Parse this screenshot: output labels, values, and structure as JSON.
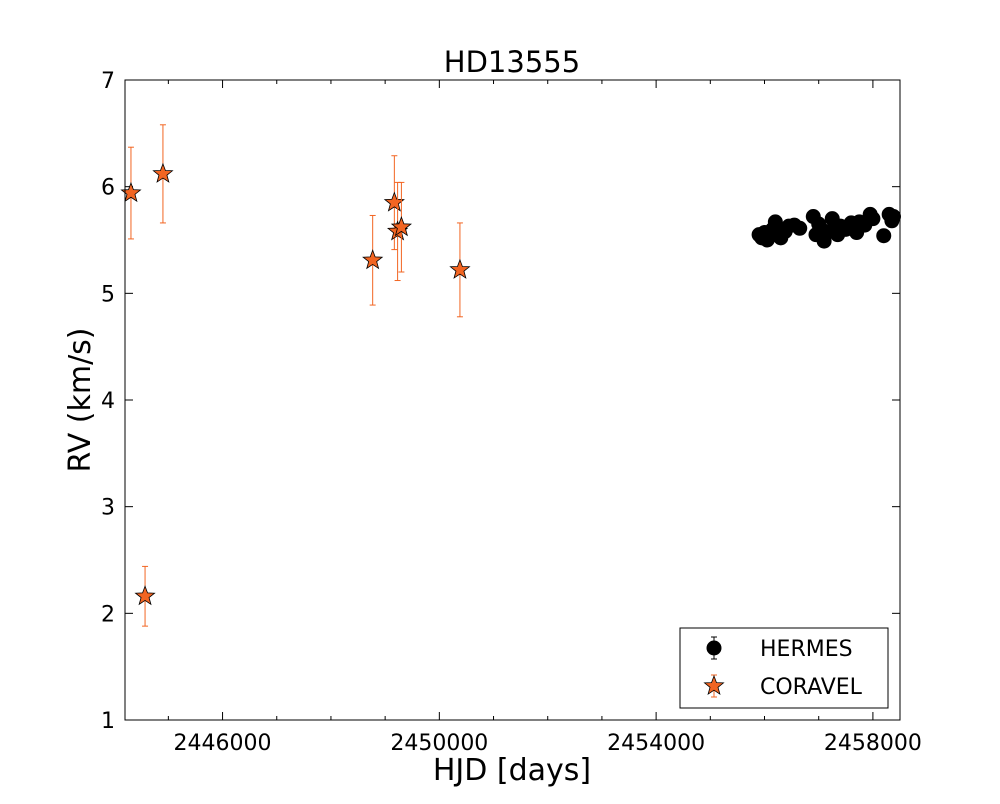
{
  "chart_data": {
    "type": "scatter",
    "title": "HD13555",
    "xlabel": "HJD [days]",
    "ylabel": "RV (km/s)",
    "xlim": [
      2444200,
      2458500
    ],
    "ylim": [
      1,
      7
    ],
    "x_ticks": [
      2446000,
      2450000,
      2454000,
      2458000
    ],
    "x_tick_labels": [
      "2446000",
      "2450000",
      "2454000",
      "2458000"
    ],
    "y_ticks": [
      1,
      2,
      3,
      4,
      5,
      6,
      7
    ],
    "y_tick_labels": [
      "1",
      "2",
      "3",
      "4",
      "5",
      "6",
      "7"
    ],
    "grid": false,
    "legend_position": "lower-right",
    "series": [
      {
        "name": "HERMES",
        "marker": "circle",
        "color": "#000000",
        "points": [
          {
            "x": 2455900,
            "y": 5.55,
            "err": 0.03
          },
          {
            "x": 2455950,
            "y": 5.52,
            "err": 0.03
          },
          {
            "x": 2456000,
            "y": 5.57,
            "err": 0.03
          },
          {
            "x": 2456050,
            "y": 5.5,
            "err": 0.03
          },
          {
            "x": 2456150,
            "y": 5.6,
            "err": 0.03
          },
          {
            "x": 2456200,
            "y": 5.67,
            "err": 0.03
          },
          {
            "x": 2456300,
            "y": 5.52,
            "err": 0.03
          },
          {
            "x": 2456380,
            "y": 5.58,
            "err": 0.03
          },
          {
            "x": 2456450,
            "y": 5.63,
            "err": 0.03
          },
          {
            "x": 2456550,
            "y": 5.64,
            "err": 0.03
          },
          {
            "x": 2456650,
            "y": 5.61,
            "err": 0.03
          },
          {
            "x": 2456900,
            "y": 5.72,
            "err": 0.03
          },
          {
            "x": 2456950,
            "y": 5.55,
            "err": 0.03
          },
          {
            "x": 2457000,
            "y": 5.65,
            "err": 0.03
          },
          {
            "x": 2457050,
            "y": 5.6,
            "err": 0.03
          },
          {
            "x": 2457100,
            "y": 5.49,
            "err": 0.03
          },
          {
            "x": 2457200,
            "y": 5.58,
            "err": 0.03
          },
          {
            "x": 2457250,
            "y": 5.7,
            "err": 0.03
          },
          {
            "x": 2457300,
            "y": 5.62,
            "err": 0.03
          },
          {
            "x": 2457350,
            "y": 5.55,
            "err": 0.03
          },
          {
            "x": 2457400,
            "y": 5.63,
            "err": 0.03
          },
          {
            "x": 2457500,
            "y": 5.6,
            "err": 0.03
          },
          {
            "x": 2457600,
            "y": 5.66,
            "err": 0.03
          },
          {
            "x": 2457650,
            "y": 5.61,
            "err": 0.03
          },
          {
            "x": 2457700,
            "y": 5.57,
            "err": 0.03
          },
          {
            "x": 2457750,
            "y": 5.67,
            "err": 0.03
          },
          {
            "x": 2457850,
            "y": 5.64,
            "err": 0.03
          },
          {
            "x": 2457950,
            "y": 5.74,
            "err": 0.03
          },
          {
            "x": 2458000,
            "y": 5.7,
            "err": 0.03
          },
          {
            "x": 2458200,
            "y": 5.54,
            "err": 0.03
          },
          {
            "x": 2458300,
            "y": 5.74,
            "err": 0.03
          },
          {
            "x": 2458350,
            "y": 5.68,
            "err": 0.03
          },
          {
            "x": 2458380,
            "y": 5.72,
            "err": 0.03
          }
        ]
      },
      {
        "name": "CORAVEL",
        "marker": "star",
        "color": "#f26522",
        "points": [
          {
            "x": 2444310,
            "y": 5.94,
            "err": 0.43
          },
          {
            "x": 2444570,
            "y": 2.16,
            "err": 0.28
          },
          {
            "x": 2444900,
            "y": 6.12,
            "err": 0.46
          },
          {
            "x": 2448770,
            "y": 5.31,
            "err": 0.42
          },
          {
            "x": 2449170,
            "y": 5.85,
            "err": 0.44
          },
          {
            "x": 2449230,
            "y": 5.58,
            "err": 0.46
          },
          {
            "x": 2449300,
            "y": 5.62,
            "err": 0.42
          },
          {
            "x": 2450380,
            "y": 5.22,
            "err": 0.44
          }
        ]
      }
    ]
  }
}
